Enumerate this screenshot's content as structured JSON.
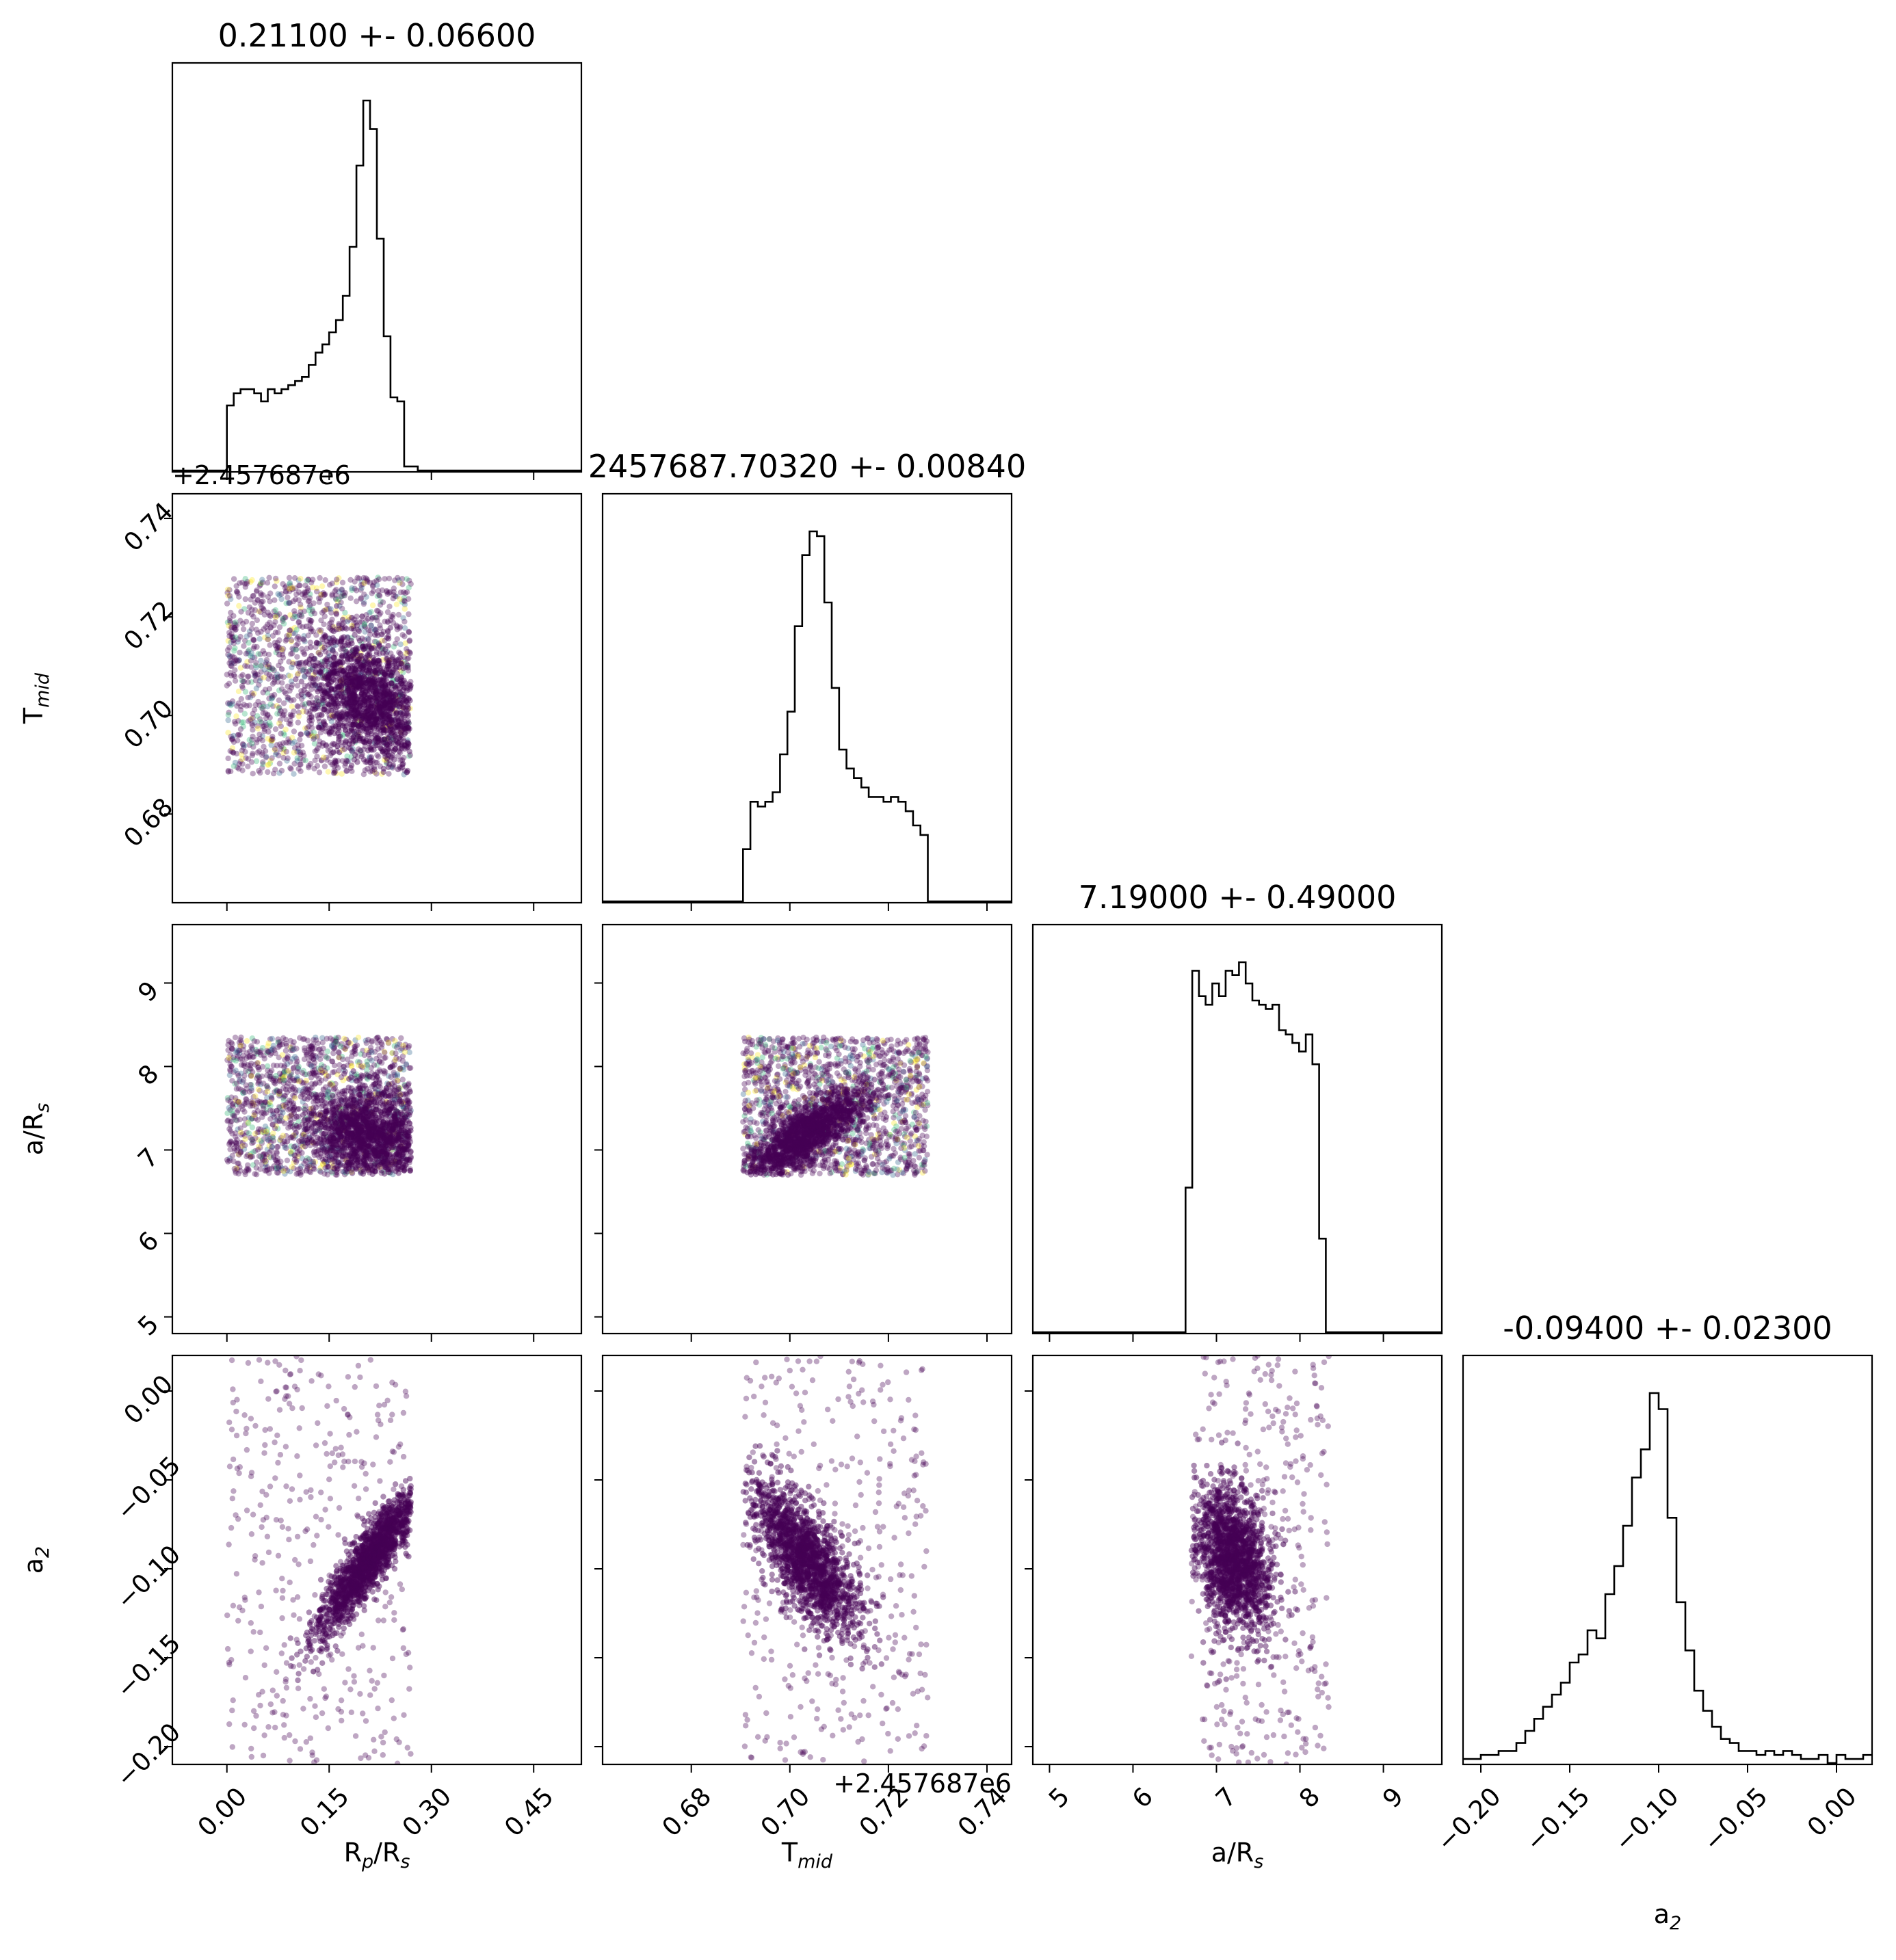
{
  "chart_data": {
    "type": "scatter",
    "kind": "corner",
    "parameters": [
      {
        "key": "rp",
        "label_main": "R",
        "label_sub1": "p",
        "label_mid": "/R",
        "label_sub2": "s",
        "range": [
          -0.08,
          0.52
        ],
        "ticks": [
          "0.00",
          "0.15",
          "0.30",
          "0.45"
        ],
        "tick_values": [
          0.0,
          0.15,
          0.3,
          0.45
        ]
      },
      {
        "key": "tmid",
        "label_main": "T",
        "label_sub1": "mid",
        "label_mid": "",
        "label_sub2": "",
        "range": [
          2457687.662,
          2457687.745
        ],
        "ticks": [
          "0.68",
          "0.70",
          "0.72",
          "0.74"
        ],
        "tick_values": [
          2457687.68,
          2457687.7,
          2457687.72,
          2457687.74
        ],
        "offset_text": "+2.457687e6"
      },
      {
        "key": "ars",
        "label_main": "a/R",
        "label_sub1": "s",
        "label_mid": "",
        "label_sub2": "",
        "range": [
          4.8,
          9.7
        ],
        "ticks": [
          "5",
          "6",
          "7",
          "8",
          "9"
        ],
        "tick_values": [
          5,
          6,
          7,
          8,
          9
        ]
      },
      {
        "key": "a2",
        "label_main": "a",
        "label_sub1": "2",
        "label_mid": "",
        "label_sub2": "",
        "range": [
          -0.21,
          0.02
        ],
        "ticks": [
          "−0.20",
          "−0.15",
          "−0.10",
          "−0.05",
          "0.00"
        ],
        "tick_values": [
          -0.2,
          -0.15,
          -0.1,
          -0.05,
          0.0
        ]
      }
    ],
    "titles": [
      "0.21100 +- 0.06600",
      "2457687.70320 +- 0.00840",
      "7.19000 +- 0.49000",
      "-0.09400 +- 0.02300"
    ],
    "histograms": [
      {
        "bin_edges": [
          -0.08,
          0.0,
          0.01,
          0.02,
          0.03,
          0.04,
          0.05,
          0.06,
          0.07,
          0.08,
          0.09,
          0.1,
          0.11,
          0.12,
          0.13,
          0.14,
          0.15,
          0.16,
          0.17,
          0.18,
          0.19,
          0.2,
          0.21,
          0.22,
          0.23,
          0.24,
          0.25,
          0.26,
          0.28,
          0.52
        ],
        "counts": [
          0,
          16,
          19,
          20,
          20,
          19,
          17,
          20,
          19,
          20,
          21,
          22,
          23,
          26,
          29,
          31,
          34,
          37,
          43,
          55,
          75,
          91,
          84,
          57,
          33,
          18,
          17,
          1,
          0
        ]
      },
      {
        "bin_edges": [
          2457687.662,
          2457687.6905,
          2457687.692,
          2457687.6935,
          2457687.695,
          2457687.6965,
          2457687.698,
          2457687.6995,
          2457687.701,
          2457687.7025,
          2457687.704,
          2457687.7055,
          2457687.707,
          2457687.7085,
          2457687.71,
          2457687.7115,
          2457687.713,
          2457687.7145,
          2457687.716,
          2457687.7175,
          2457687.719,
          2457687.7205,
          2457687.722,
          2457687.7235,
          2457687.725,
          2457687.7265,
          2457687.728,
          2457687.745
        ],
        "counts": [
          0,
          11,
          21,
          20,
          21,
          23,
          31,
          40,
          58,
          73,
          78,
          77,
          63,
          45,
          32,
          28,
          26,
          24,
          22,
          22,
          21,
          22,
          21,
          19,
          16,
          14,
          0
        ]
      },
      {
        "bin_edges": [
          4.8,
          6.63,
          6.71,
          6.79,
          6.87,
          6.95,
          7.03,
          7.11,
          7.19,
          7.27,
          7.35,
          7.43,
          7.51,
          7.59,
          7.67,
          7.75,
          7.83,
          7.91,
          7.99,
          8.07,
          8.15,
          8.23,
          8.31,
          8.39,
          9.7
        ],
        "counts": [
          0,
          34,
          85,
          79,
          77,
          82,
          79,
          85,
          84,
          87,
          82,
          78,
          77,
          76,
          77,
          71,
          70,
          68,
          66,
          70,
          63,
          22,
          0,
          0
        ]
      },
      {
        "bin_edges": [
          -0.21,
          -0.205,
          -0.2,
          -0.195,
          -0.19,
          -0.185,
          -0.18,
          -0.175,
          -0.17,
          -0.165,
          -0.16,
          -0.155,
          -0.15,
          -0.145,
          -0.14,
          -0.135,
          -0.13,
          -0.125,
          -0.12,
          -0.115,
          -0.11,
          -0.105,
          -0.1,
          -0.095,
          -0.09,
          -0.085,
          -0.08,
          -0.075,
          -0.07,
          -0.065,
          -0.06,
          -0.055,
          -0.05,
          -0.045,
          -0.04,
          -0.035,
          -0.03,
          -0.025,
          -0.02,
          -0.015,
          -0.01,
          -0.005,
          0.0,
          0.005,
          0.01,
          0.015,
          0.02
        ],
        "counts": [
          1,
          1,
          2,
          2,
          3,
          3,
          5,
          8,
          11,
          14,
          17,
          20,
          25,
          27,
          33,
          31,
          42,
          49,
          59,
          71,
          78,
          92,
          88,
          61,
          40,
          28,
          18,
          13,
          9,
          6,
          5,
          3,
          3,
          2,
          3,
          2,
          3,
          2,
          1,
          1,
          2,
          0,
          2,
          1,
          1,
          2
        ]
      }
    ],
    "scatter_description": [
      {
        "x": "rp",
        "y": "tmid",
        "x_range": [
          0.0,
          0.27
        ],
        "y_range": [
          2457687.688,
          2457687.728
        ],
        "core_center": [
          0.21,
          2457687.7032
        ],
        "correlation": -0.4
      },
      {
        "x": "rp",
        "y": "ars",
        "x_range": [
          0.0,
          0.27
        ],
        "y_range": [
          6.7,
          8.35
        ],
        "core_center": [
          0.21,
          7.19
        ],
        "correlation": -0.2
      },
      {
        "x": "tmid",
        "y": "ars",
        "x_range": [
          2457687.6905,
          2457687.728
        ],
        "y_range": [
          6.7,
          8.35
        ],
        "core_center": [
          2457687.7032,
          7.19
        ],
        "correlation": 0.8
      },
      {
        "x": "rp",
        "y": "a2",
        "x_range": [
          0.0,
          0.27
        ],
        "y_range": [
          -0.21,
          0.02
        ],
        "core_center": [
          0.21,
          -0.094
        ],
        "correlation": 0.9
      },
      {
        "x": "tmid",
        "y": "a2",
        "x_range": [
          2457687.6905,
          2457687.728
        ],
        "y_range": [
          -0.21,
          0.02
        ],
        "core_center": [
          2457687.7032,
          -0.094
        ],
        "correlation": -0.7
      },
      {
        "x": "ars",
        "y": "a2",
        "x_range": [
          6.7,
          8.35
        ],
        "y_range": [
          -0.21,
          0.02
        ],
        "core_center": [
          7.19,
          -0.094
        ],
        "correlation": -0.3
      }
    ],
    "marker_color": "#440154",
    "marker_colors_outer": [
      "#440154",
      "#31688e",
      "#35b779",
      "#fde725"
    ],
    "grid": false,
    "legend": "none"
  }
}
